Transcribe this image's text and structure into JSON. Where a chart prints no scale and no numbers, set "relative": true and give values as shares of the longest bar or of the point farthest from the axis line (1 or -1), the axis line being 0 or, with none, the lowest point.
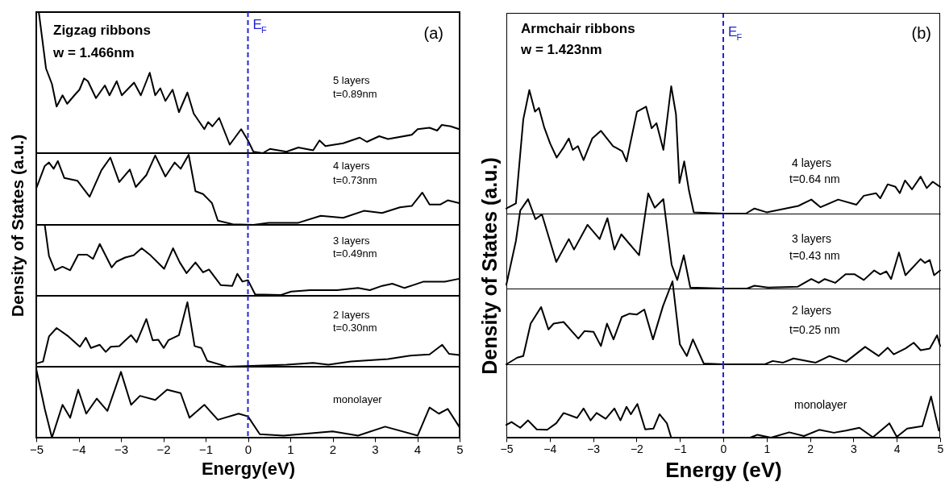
{
  "chart_data": [
    {
      "type": "line",
      "title": "Zigzag ribbons",
      "subtitle": "w = 1.466nm",
      "ylabel": "Density of States (a.u.)",
      "annotations": [
        "(a)",
        "5 layers",
        "t=0.89nm"
      ],
      "relative": true,
      "color": "#000000",
      "xlim": [
        -5,
        5
      ],
      "tick_labels": false,
      "ref_lines": [
        {
          "axis": "x",
          "value": 0,
          "label": "E$_{F}$",
          "color": "#2323d8",
          "line_style": "dashed"
        }
      ],
      "x": [
        -4.94,
        -4.77,
        -4.63,
        -4.52,
        -4.38,
        -4.27,
        -4.1,
        -3.98,
        -3.87,
        -3.78,
        -3.59,
        -3.38,
        -3.27,
        -3.1,
        -2.98,
        -2.69,
        -2.53,
        -2.32,
        -2.19,
        -2.07,
        -1.95,
        -1.78,
        -1.63,
        -1.43,
        -1.28,
        -1.03,
        -0.94,
        -0.84,
        -0.68,
        -0.43,
        -0.16,
        0,
        0.13,
        0.35,
        0.52,
        0.91,
        1.19,
        1.54,
        1.69,
        1.83,
        2.25,
        2.64,
        2.81,
        3.1,
        3.31,
        3.87,
        4.01,
        4.29,
        4.47,
        4.58,
        4.79,
        4.99
      ],
      "values": [
        1.0,
        0.6,
        0.49,
        0.33,
        0.41,
        0.35,
        0.41,
        0.45,
        0.53,
        0.51,
        0.39,
        0.48,
        0.41,
        0.51,
        0.41,
        0.5,
        0.41,
        0.57,
        0.41,
        0.46,
        0.37,
        0.45,
        0.29,
        0.43,
        0.28,
        0.17,
        0.22,
        0.19,
        0.25,
        0.06,
        0.17,
        0.09,
        0.01,
        0,
        0.03,
        0.01,
        0.04,
        0.02,
        0.09,
        0.05,
        0.07,
        0.11,
        0.08,
        0.12,
        0.1,
        0.13,
        0.17,
        0.18,
        0.16,
        0.2,
        0.19,
        0.17
      ]
    },
    {
      "type": "line",
      "annotations": [
        "4 layers",
        "t=0.73nm"
      ],
      "relative": true,
      "color": "#000000",
      "xlim": [
        -5,
        5
      ],
      "tick_labels": false,
      "ref_lines": [
        {
          "axis": "x",
          "value": 0,
          "color": "#2323d8",
          "line_style": "dashed"
        }
      ],
      "x": [
        -5,
        -4.8,
        -4.7,
        -4.59,
        -4.49,
        -4.34,
        -4.03,
        -3.74,
        -3.46,
        -3.25,
        -3.04,
        -2.79,
        -2.65,
        -2.4,
        -2.19,
        -1.95,
        -1.73,
        -1.59,
        -1.4,
        -1.24,
        -1.06,
        -0.85,
        -0.71,
        -0.36,
        0.13,
        0.49,
        1.19,
        1.72,
        2.25,
        2.74,
        3.17,
        3.59,
        3.87,
        4.12,
        4.29,
        4.54,
        4.72,
        4.99
      ],
      "values": [
        0.52,
        0.84,
        0.89,
        0.8,
        0.91,
        0.67,
        0.63,
        0.4,
        0.78,
        0.96,
        0.61,
        0.79,
        0.54,
        0.71,
        0.99,
        0.69,
        0.89,
        0.8,
        1.0,
        0.48,
        0.44,
        0.31,
        0.06,
        0.01,
        0,
        0.03,
        0.03,
        0.13,
        0.1,
        0.2,
        0.17,
        0.25,
        0.27,
        0.46,
        0.29,
        0.29,
        0.35,
        0.31
      ]
    },
    {
      "type": "line",
      "annotations": [
        "3 layers",
        "t=0.49nm"
      ],
      "relative": true,
      "color": "#000000",
      "xlim": [
        -5,
        5
      ],
      "tick_labels": false,
      "ref_lines": [
        {
          "axis": "x",
          "value": 0,
          "color": "#2323d8",
          "line_style": "dashed"
        }
      ],
      "x": [
        -4.8,
        -4.7,
        -4.56,
        -4.38,
        -4.2,
        -4.01,
        -3.8,
        -3.66,
        -3.5,
        -3.22,
        -3.11,
        -2.9,
        -2.7,
        -2.51,
        -2.3,
        -1.98,
        -1.77,
        -1.61,
        -1.45,
        -1.24,
        -1.06,
        -0.92,
        -0.64,
        -0.37,
        -0.25,
        -0.13,
        0,
        0.17,
        0.77,
        1.02,
        1.47,
        2.11,
        2.6,
        2.88,
        3.17,
        3.41,
        3.7,
        4.15,
        4.65,
        4.99
      ],
      "values": [
        1.0,
        0.56,
        0.36,
        0.41,
        0.36,
        0.58,
        0.58,
        0.52,
        0.73,
        0.4,
        0.48,
        0.54,
        0.57,
        0.67,
        0.57,
        0.38,
        0.67,
        0.47,
        0.32,
        0.47,
        0.33,
        0.37,
        0.15,
        0.14,
        0.31,
        0.2,
        0.22,
        0.02,
        0.01,
        0.06,
        0.08,
        0.08,
        0.11,
        0.08,
        0.14,
        0.17,
        0.11,
        0.2,
        0.2,
        0.24
      ]
    },
    {
      "type": "line",
      "annotations": [
        "2 layers",
        "t=0.30nm"
      ],
      "relative": true,
      "color": "#000000",
      "xlim": [
        -5,
        5
      ],
      "tick_labels": false,
      "ref_lines": [
        {
          "axis": "x",
          "value": 0,
          "color": "#2323d8",
          "line_style": "dashed"
        }
      ],
      "x": [
        -5,
        -4.84,
        -4.7,
        -4.52,
        -4.24,
        -3.97,
        -3.83,
        -3.71,
        -3.5,
        -3.36,
        -3.24,
        -3.04,
        -2.91,
        -2.76,
        -2.63,
        -2.4,
        -2.25,
        -2.12,
        -1.99,
        -1.88,
        -1.63,
        -1.43,
        -1.26,
        -1.1,
        -0.96,
        -0.64,
        -0.5,
        0.91,
        1.54,
        1.9,
        2.43,
        3.31,
        3.8,
        4.29,
        4.59,
        4.75,
        4.99
      ],
      "values": [
        0.05,
        0.08,
        0.47,
        0.6,
        0.47,
        0.31,
        0.45,
        0.29,
        0.34,
        0.23,
        0.31,
        0.32,
        0.4,
        0.49,
        0.38,
        0.74,
        0.41,
        0.42,
        0.29,
        0.41,
        0.49,
        1.0,
        0.32,
        0.29,
        0.09,
        0.03,
        0,
        0.03,
        0.06,
        0.03,
        0.08,
        0.12,
        0.17,
        0.19,
        0.34,
        0.2,
        0.18
      ]
    },
    {
      "type": "line",
      "xlabel": "Energy(eV)",
      "annotations": [
        "monolayer"
      ],
      "relative": true,
      "color": "#000000",
      "xlim": [
        -5,
        5
      ],
      "xticks": [
        -5,
        -4,
        -3,
        -2,
        -1,
        0,
        1,
        2,
        3,
        4,
        5
      ],
      "tick_labels": "x",
      "ref_lines": [
        {
          "axis": "x",
          "value": 0,
          "color": "#2323d8",
          "line_style": "dashed"
        }
      ],
      "x": [
        -5,
        -4.8,
        -4.63,
        -4.38,
        -4.2,
        -4.01,
        -3.82,
        -3.57,
        -3.32,
        -3.0,
        -2.76,
        -2.55,
        -2.19,
        -1.91,
        -1.59,
        -1.38,
        -1.03,
        -0.71,
        -0.22,
        0,
        0.28,
        0.84,
        2.0,
        2.6,
        3.24,
        4.01,
        4.29,
        4.51,
        4.72,
        4.99
      ],
      "values": [
        1.0,
        0.42,
        0,
        0.48,
        0.29,
        0.7,
        0.35,
        0.57,
        0.39,
        0.96,
        0.48,
        0.61,
        0.55,
        0.7,
        0.65,
        0.29,
        0.48,
        0.26,
        0.35,
        0.31,
        0.05,
        0.03,
        0.09,
        0.03,
        0.16,
        0.03,
        0.44,
        0.35,
        0.42,
        0.16
      ]
    },
    {
      "type": "line",
      "title": "Armchair ribbons",
      "subtitle": "w = 1.423nm",
      "ylabel": "Density of States (a.u.)",
      "annotations": [
        "(b)",
        "4 layers",
        "t=0.64 nm"
      ],
      "relative": true,
      "color": "#000000",
      "xlim": [
        -5,
        5
      ],
      "tick_labels": false,
      "ref_lines": [
        {
          "axis": "x",
          "value": 0,
          "label": "E$_{F}$",
          "color": "#2323d8",
          "line_style": "dashed"
        }
      ],
      "x": [
        -5,
        -4.78,
        -4.61,
        -4.47,
        -4.34,
        -4.25,
        -4.13,
        -3.99,
        -3.84,
        -3.68,
        -3.56,
        -3.47,
        -3.35,
        -3.22,
        -3.02,
        -2.82,
        -2.54,
        -2.33,
        -2.23,
        -1.99,
        -1.78,
        -1.65,
        -1.54,
        -1.38,
        -1.2,
        -1.09,
        -1.01,
        -0.9,
        -0.79,
        -0.68,
        0,
        0.52,
        0.72,
        1.0,
        1.73,
        2.03,
        2.24,
        2.65,
        3.07,
        3.24,
        3.52,
        3.62,
        3.79,
        3.97,
        4.07,
        4.19,
        4.35,
        4.55,
        4.69,
        4.83,
        5.0
      ],
      "values": [
        0.04,
        0.08,
        0.74,
        0.97,
        0.8,
        0.83,
        0.68,
        0.55,
        0.44,
        0.52,
        0.59,
        0.5,
        0.53,
        0.42,
        0.59,
        0.65,
        0.53,
        0.49,
        0.41,
        0.8,
        0.84,
        0.67,
        0.71,
        0.5,
        1.0,
        0.78,
        0.24,
        0.41,
        0.18,
        0.01,
        0,
        0,
        0.04,
        0.01,
        0.06,
        0.11,
        0.05,
        0.11,
        0.07,
        0.14,
        0.16,
        0.12,
        0.23,
        0.21,
        0.16,
        0.26,
        0.19,
        0.29,
        0.2,
        0.25,
        0.21
      ]
    },
    {
      "type": "line",
      "annotations": [
        "3 layers",
        "t=0.43 nm"
      ],
      "relative": true,
      "color": "#000000",
      "xlim": [
        -5,
        5
      ],
      "tick_labels": false,
      "ref_lines": [
        {
          "axis": "x",
          "value": 0,
          "color": "#2323d8",
          "line_style": "dashed"
        }
      ],
      "x": [
        -5,
        -4.78,
        -4.68,
        -4.5,
        -4.33,
        -4.18,
        -3.85,
        -3.56,
        -3.44,
        -3.13,
        -2.85,
        -2.67,
        -2.51,
        -2.35,
        -1.94,
        -1.73,
        -1.58,
        -1.38,
        -1.19,
        -1.06,
        -0.91,
        -0.76,
        0,
        0.55,
        0.72,
        1.03,
        1.72,
        2.03,
        2.2,
        2.34,
        2.58,
        2.82,
        3.03,
        3.24,
        3.48,
        3.62,
        3.76,
        3.87,
        4.05,
        4.2,
        4.55,
        4.65,
        4.76,
        4.86,
        5.0
      ],
      "values": [
        0.04,
        0.5,
        0.82,
        0.94,
        0.73,
        0.78,
        0.28,
        0.52,
        0.41,
        0.67,
        0.52,
        0.74,
        0.41,
        0.57,
        0.35,
        1.0,
        0.85,
        0.94,
        0.25,
        0.09,
        0.35,
        0.01,
        0,
        0,
        0.03,
        0.01,
        0.02,
        0.1,
        0.06,
        0.1,
        0.06,
        0.15,
        0.15,
        0.09,
        0.19,
        0.15,
        0.18,
        0.1,
        0.38,
        0.14,
        0.31,
        0.27,
        0.3,
        0.14,
        0.19
      ]
    },
    {
      "type": "line",
      "annotations": [
        "2 layers",
        "t=0.25 nm"
      ],
      "relative": true,
      "color": "#000000",
      "xlim": [
        -5,
        5
      ],
      "tick_labels": false,
      "ref_lines": [
        {
          "axis": "x",
          "value": 0,
          "color": "#2323d8",
          "line_style": "dashed"
        }
      ],
      "x": [
        -5,
        -4.75,
        -4.61,
        -4.44,
        -4.2,
        -4.03,
        -3.91,
        -3.68,
        -3.34,
        -3.2,
        -2.99,
        -2.82,
        -2.68,
        -2.53,
        -2.34,
        -2.16,
        -1.99,
        -1.82,
        -1.62,
        -1.39,
        -1.17,
        -1.0,
        -0.84,
        -0.7,
        -0.45,
        0,
        0.96,
        1.14,
        1.38,
        1.62,
        2.13,
        2.45,
        2.83,
        3.27,
        3.58,
        3.79,
        3.93,
        4.2,
        4.39,
        4.55,
        4.76,
        4.93,
        5.0
      ],
      "values": [
        0,
        0.08,
        0.1,
        0.49,
        0.69,
        0.42,
        0.49,
        0.51,
        0.31,
        0.4,
        0.39,
        0.22,
        0.49,
        0.3,
        0.57,
        0.61,
        0.6,
        0.66,
        0.3,
        0.7,
        1.0,
        0.24,
        0.1,
        0.3,
        0.01,
        0,
        0,
        0.04,
        0.02,
        0.07,
        0.02,
        0.1,
        0.03,
        0.21,
        0.1,
        0.2,
        0.12,
        0.19,
        0.26,
        0.17,
        0.19,
        0.35,
        0.22
      ]
    },
    {
      "type": "line",
      "xlabel": "Energy (eV)",
      "annotations": [
        "monolayer"
      ],
      "relative": true,
      "color": "#000000",
      "xlim": [
        -5,
        5
      ],
      "xticks": [
        -5,
        -4,
        -3,
        -2,
        -1,
        0,
        1,
        2,
        3,
        4,
        5
      ],
      "tick_labels": "x",
      "ref_lines": [
        {
          "axis": "x",
          "value": 0,
          "color": "#2323d8",
          "line_style": "dashed"
        }
      ],
      "x": [
        -5,
        -4.88,
        -4.68,
        -4.5,
        -4.3,
        -4.06,
        -3.85,
        -3.68,
        -3.37,
        -3.22,
        -3.06,
        -2.92,
        -2.71,
        -2.51,
        -2.37,
        -2.23,
        -2.13,
        -1.98,
        -1.8,
        -1.61,
        -1.47,
        -1.3,
        -1.2,
        0.62,
        0.79,
        1.1,
        1.52,
        1.86,
        2.21,
        2.55,
        2.83,
        3.14,
        3.45,
        3.83,
        4.0,
        4.24,
        4.59,
        4.79,
        4.97
      ],
      "values": [
        0.31,
        0.38,
        0.24,
        0.42,
        0.2,
        0.19,
        0.35,
        0.6,
        0.48,
        0.71,
        0.42,
        0.6,
        0.46,
        0.71,
        0.42,
        0.75,
        0.57,
        0.82,
        0.2,
        0.22,
        0.57,
        0.35,
        0,
        0,
        0.07,
        0,
        0.13,
        0.04,
        0.19,
        0.12,
        0.17,
        0.24,
        0.01,
        0.35,
        0.02,
        0.22,
        0.28,
        1.0,
        0.17
      ]
    }
  ]
}
